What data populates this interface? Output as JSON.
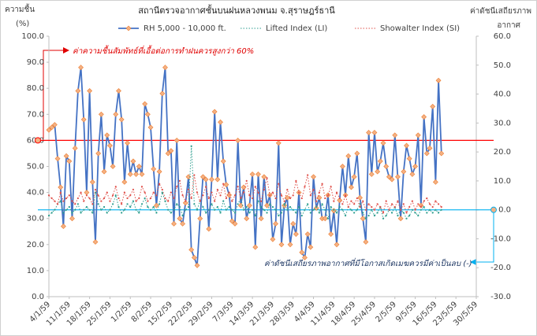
{
  "chart_data": {
    "type": "line",
    "title": "สถานีตรวจอากาศชั้นบนฝนหลวงพนม จ.สุราษฎร์ธานี",
    "y_label_lines": [
      "ความชื้น",
      "(%)"
    ],
    "y2_label_lines": [
      "ค่าดัชนีเสถียรภาพ",
      "อากาศ"
    ],
    "annotations": [
      "ค่าความชื้นสัมพัทธ์ที่เอื้อต่อการทำฝนควรสูงกว่า 60%",
      "ค่าดัชนีเสถียรภาพอากาศที่มีโอกาสเกิดเมฆควรมีค่าเป็นลบ (-)"
    ],
    "reference_lines": [
      {
        "value": 60,
        "axis": "y",
        "color": "#ff0000"
      },
      {
        "value": 0,
        "axis": "y2",
        "color": "#00b0f0"
      }
    ],
    "x": [
      "4/1/59",
      "5/1/59",
      "6/1/59",
      "7/1/59",
      "8/1/59",
      "9/1/59",
      "10/1/59",
      "11/1/59",
      "12/1/59",
      "13/1/59",
      "14/1/59",
      "15/1/59",
      "16/1/59",
      "17/1/59",
      "18/1/59",
      "19/1/59",
      "20/1/59",
      "21/1/59",
      "22/1/59",
      "23/1/59",
      "24/1/59",
      "25/1/59",
      "26/1/59",
      "27/1/59",
      "28/1/59",
      "29/1/59",
      "30/1/59",
      "31/1/59",
      "1/2/59",
      "2/2/59",
      "3/2/59",
      "4/2/59",
      "5/2/59",
      "6/2/59",
      "7/2/59",
      "8/2/59",
      "9/2/59",
      "10/2/59",
      "11/2/59",
      "12/2/59",
      "13/2/59",
      "14/2/59",
      "15/2/59",
      "16/2/59",
      "17/2/59",
      "18/2/59",
      "19/2/59",
      "20/2/59",
      "21/2/59",
      "22/2/59",
      "23/2/59",
      "24/2/59",
      "25/2/59",
      "26/2/59",
      "27/2/59",
      "28/2/59",
      "29/2/59",
      "1/3/59",
      "2/3/59",
      "3/3/59",
      "4/3/59",
      "5/3/59",
      "6/3/59",
      "7/3/59",
      "8/3/59",
      "9/3/59",
      "10/3/59",
      "11/3/59",
      "12/3/59",
      "13/3/59",
      "14/3/59",
      "15/3/59",
      "16/3/59",
      "17/3/59",
      "18/3/59",
      "19/3/59",
      "20/3/59",
      "21/3/59",
      "22/3/59",
      "23/3/59",
      "24/3/59",
      "25/3/59",
      "26/3/59",
      "27/3/59",
      "28/3/59",
      "29/3/59",
      "30/3/59",
      "31/3/59",
      "1/4/59",
      "2/4/59",
      "3/4/59",
      "4/4/59",
      "5/4/59",
      "6/4/59",
      "7/4/59",
      "8/4/59",
      "9/4/59",
      "10/4/59",
      "11/4/59",
      "12/4/59",
      "13/4/59",
      "14/4/59",
      "15/4/59",
      "16/4/59",
      "17/4/59",
      "18/4/59",
      "19/4/59",
      "20/4/59",
      "21/4/59",
      "22/4/59",
      "23/4/59",
      "24/4/59",
      "25/4/59",
      "26/4/59",
      "27/4/59",
      "28/4/59",
      "29/4/59",
      "30/4/59",
      "1/5/59",
      "2/5/59",
      "3/5/59",
      "4/5/59",
      "5/5/59",
      "6/5/59",
      "7/5/59",
      "8/5/59",
      "9/5/59",
      "10/5/59",
      "11/5/59",
      "12/5/59",
      "13/5/59",
      "14/5/59",
      "15/5/59",
      "16/5/59",
      "17/5/59",
      "18/5/59"
    ],
    "xlim": [
      "4/1/59",
      "30/5/59"
    ],
    "xticks": [
      "4/1/59",
      "11/1/59",
      "18/1/59",
      "25/1/59",
      "1/2/59",
      "8/2/59",
      "15/2/59",
      "22/2/59",
      "29/2/59",
      "7/3/59",
      "14/3/59",
      "21/3/59",
      "28/3/59",
      "4/4/59",
      "11/4/59",
      "18/4/59",
      "25/4/59",
      "2/5/59",
      "9/5/59",
      "16/5/59",
      "23/5/59",
      "30/5/59"
    ],
    "ylim": [
      0,
      100
    ],
    "yticks": [
      {
        "value": 0,
        "label": "0.0"
      },
      {
        "value": 10,
        "label": "10.0"
      },
      {
        "value": 20,
        "label": "20.0"
      },
      {
        "value": 30,
        "label": "30.0"
      },
      {
        "value": 40,
        "label": "40.0"
      },
      {
        "value": 50,
        "label": "50.0"
      },
      {
        "value": 60,
        "label": "60.0"
      },
      {
        "value": 70,
        "label": "70.0"
      },
      {
        "value": 80,
        "label": "80.0"
      },
      {
        "value": 90,
        "label": "90.0"
      },
      {
        "value": 100,
        "label": "100.0"
      }
    ],
    "y2lim": [
      -30,
      60
    ],
    "y2ticks": [
      {
        "value": -30,
        "label": "-30.0"
      },
      {
        "value": -20,
        "label": "-20.0"
      },
      {
        "value": -10,
        "label": "-10.0"
      },
      {
        "value": 0,
        "label": "0.0"
      },
      {
        "value": 10,
        "label": "10.0"
      },
      {
        "value": 20,
        "label": "20.0"
      },
      {
        "value": 30,
        "label": "30.0"
      },
      {
        "value": 40,
        "label": "40.0"
      },
      {
        "value": 50,
        "label": "50.0"
      },
      {
        "value": 60,
        "label": "60.0"
      }
    ],
    "grid": false,
    "series": [
      {
        "name": "RH 5,000 - 10,000 ft.",
        "color": "#4472c4",
        "marker_color": "#f4b183",
        "style": "solid",
        "axis": "y",
        "values": [
          64,
          65,
          66,
          53,
          42,
          27,
          54,
          52,
          30,
          57,
          79,
          88,
          68,
          40,
          79,
          44,
          21,
          55,
          70,
          48,
          62,
          58,
          50,
          70,
          79,
          68,
          44,
          59,
          47,
          52,
          47,
          50,
          47,
          74,
          70,
          65,
          49,
          35,
          48,
          78,
          88,
          55,
          56,
          28,
          60,
          30,
          28,
          36,
          46,
          18,
          15,
          12,
          30,
          46,
          45,
          26,
          45,
          71,
          45,
          67,
          52,
          43,
          39,
          29,
          28,
          60,
          35,
          42,
          30,
          35,
          47,
          19,
          47,
          30,
          46,
          35,
          39,
          22,
          28,
          59,
          20,
          35,
          38,
          20,
          28,
          24,
          40,
          17,
          15,
          24,
          19,
          46,
          34,
          38,
          30,
          30,
          39,
          24,
          33,
          20,
          37,
          50,
          39,
          54,
          42,
          46,
          55,
          38,
          30,
          21,
          63,
          47,
          63,
          48,
          52,
          59,
          50,
          46,
          45,
          62,
          46,
          30,
          48,
          58,
          53,
          47,
          50,
          62,
          35,
          69,
          55,
          57,
          73,
          44,
          83,
          55
        ]
      },
      {
        "name": "Lifted Index (LI)",
        "color": "#2e9e8f",
        "style": "dotted",
        "axis": "y2",
        "values": [
          -2,
          -1,
          0,
          2,
          3,
          -1,
          0,
          1,
          -1,
          0,
          2,
          -1,
          0,
          1,
          0,
          -1,
          6,
          2,
          0,
          1,
          -1,
          0,
          2,
          5,
          1,
          -1,
          0,
          2,
          1,
          3,
          0,
          -1,
          2,
          4,
          1,
          0,
          1,
          -1,
          2,
          6,
          3,
          0,
          -1,
          0,
          2,
          1,
          -2,
          0,
          1,
          22,
          2,
          0,
          3,
          1,
          -1,
          0,
          2,
          0,
          1,
          -1,
          3,
          0,
          1,
          0,
          -1,
          2,
          4,
          0,
          1,
          -1,
          0,
          -2,
          3,
          1,
          0,
          -1,
          2,
          1,
          0,
          -2,
          -1,
          2,
          0,
          1,
          0,
          -1,
          1,
          -2,
          0,
          2,
          -1,
          0,
          1,
          -1,
          2,
          0,
          -3,
          1,
          0,
          -1,
          1,
          0,
          -2,
          1,
          0,
          -1,
          0,
          2,
          -1,
          -3,
          -2,
          0,
          -2,
          -1,
          1,
          -3,
          -2,
          0,
          -1,
          1,
          -2,
          0,
          -1,
          -3,
          -2,
          0,
          -1,
          -2,
          0,
          1,
          -1,
          0,
          -1,
          0,
          -1,
          0
        ]
      },
      {
        "name": "Showalter Index (SI)",
        "color": "#e0504a",
        "style": "dotted",
        "axis": "y2",
        "values": [
          5,
          4,
          3,
          2,
          6,
          3,
          4,
          5,
          3,
          2,
          4,
          6,
          3,
          5,
          4,
          2,
          7,
          5,
          3,
          4,
          6,
          3,
          5,
          8,
          4,
          2,
          6,
          4,
          5,
          7,
          3,
          4,
          8,
          6,
          3,
          4,
          6,
          5,
          9,
          7,
          4,
          3,
          6,
          4,
          8,
          10,
          5,
          3,
          7,
          4,
          12,
          6,
          3,
          5,
          8,
          4,
          6,
          3,
          7,
          5,
          9,
          4,
          6,
          3,
          5,
          8,
          4,
          6,
          10,
          5,
          4,
          8,
          6,
          3,
          7,
          11,
          5,
          6,
          4,
          9,
          5,
          3,
          7,
          4,
          5,
          10,
          6,
          4,
          8,
          12,
          5,
          7,
          3,
          6,
          9,
          4,
          5,
          8,
          3,
          6,
          4,
          2,
          5,
          1,
          3,
          2,
          4,
          1,
          3,
          0,
          2,
          1,
          0,
          2,
          1,
          -1,
          3,
          0,
          2,
          1,
          3,
          0,
          2,
          -1,
          1,
          3,
          0,
          2,
          1,
          3,
          4,
          2,
          1,
          3,
          2,
          1
        ]
      }
    ]
  }
}
